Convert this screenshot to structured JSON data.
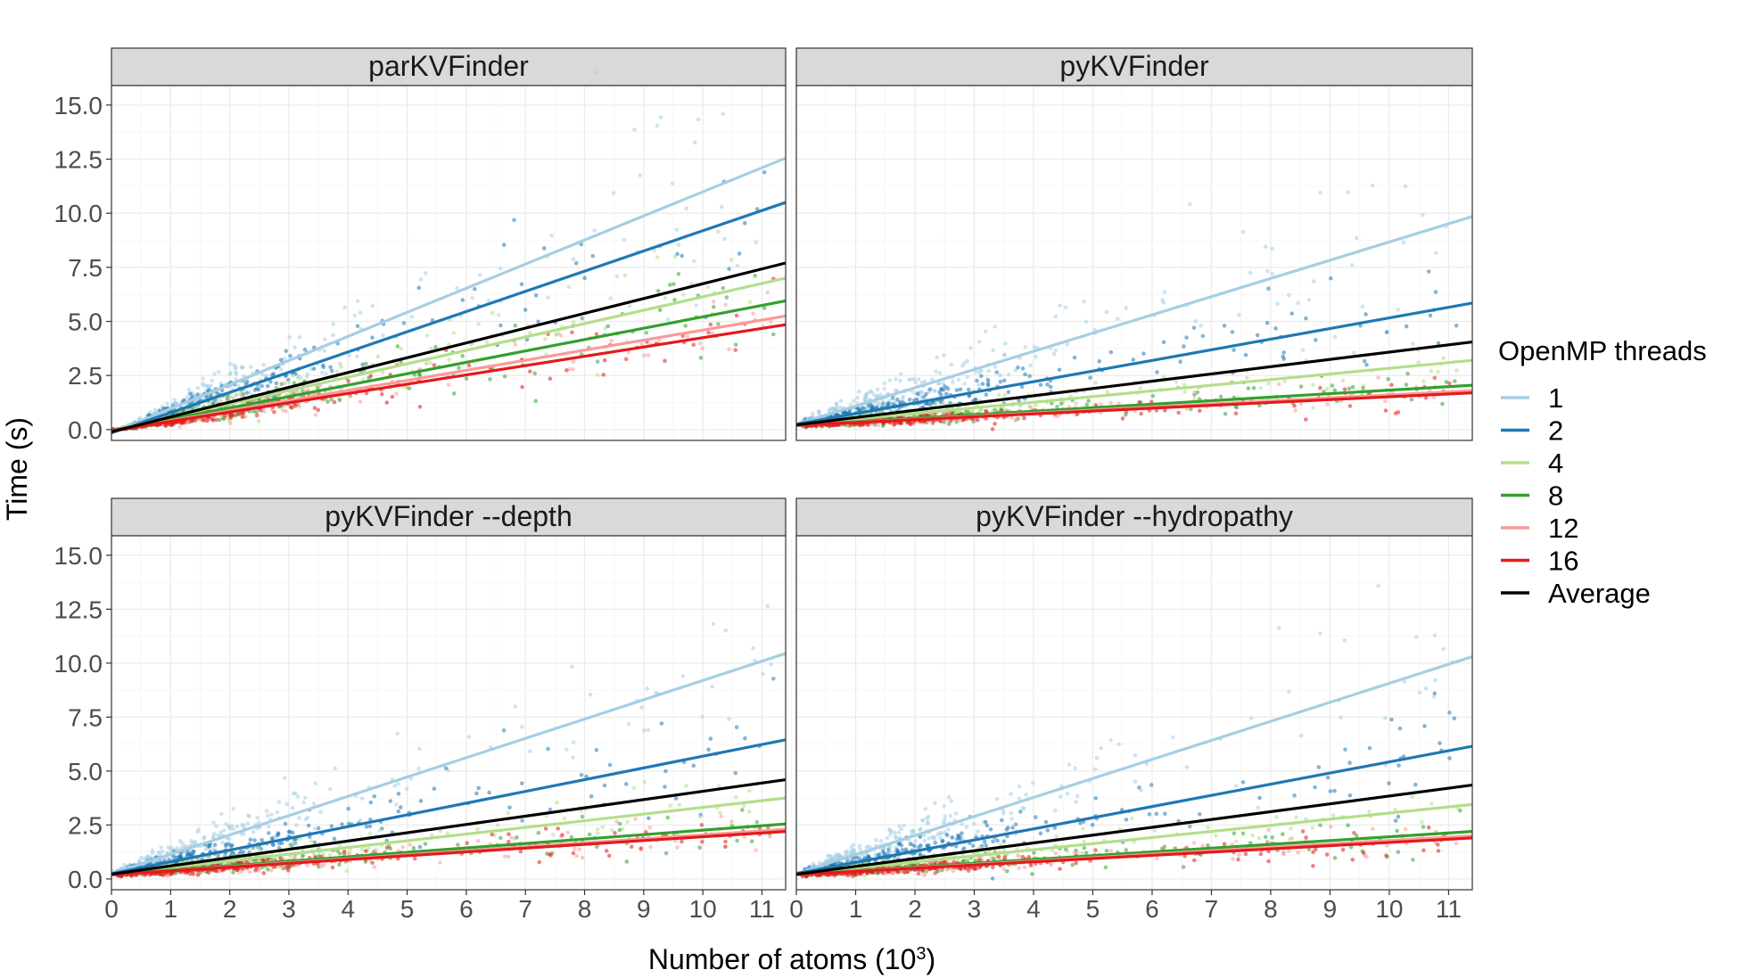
{
  "chart_data": {
    "type": "scatter",
    "facets": [
      {
        "title": "parKVFinder",
        "row": 0,
        "col": 0,
        "fits": [
          {
            "series": "1",
            "y0": -0.15,
            "y_end": 12.55
          },
          {
            "series": "2",
            "y0": -0.15,
            "y_end": 10.5
          },
          {
            "series": "4",
            "y0": -0.05,
            "y_end": 7.0
          },
          {
            "series": "8",
            "y0": -0.05,
            "y_end": 5.95
          },
          {
            "series": "12",
            "y0": -0.05,
            "y_end": 5.25
          },
          {
            "series": "16",
            "y0": -0.05,
            "y_end": 4.85
          },
          {
            "series": "Average",
            "y0": -0.1,
            "y_end": 7.7
          }
        ]
      },
      {
        "title": "pyKVFinder",
        "row": 0,
        "col": 1,
        "fits": [
          {
            "series": "1",
            "y0": 0.25,
            "y_end": 9.85
          },
          {
            "series": "2",
            "y0": 0.25,
            "y_end": 5.85
          },
          {
            "series": "4",
            "y0": 0.22,
            "y_end": 3.2
          },
          {
            "series": "8",
            "y0": 0.2,
            "y_end": 2.05
          },
          {
            "series": "12",
            "y0": 0.2,
            "y_end": 1.8
          },
          {
            "series": "16",
            "y0": 0.2,
            "y_end": 1.7
          },
          {
            "series": "Average",
            "y0": 0.22,
            "y_end": 4.05
          }
        ]
      },
      {
        "title": "pyKVFinder --depth",
        "row": 1,
        "col": 0,
        "fits": [
          {
            "series": "1",
            "y0": 0.25,
            "y_end": 10.45
          },
          {
            "series": "2",
            "y0": 0.25,
            "y_end": 6.45
          },
          {
            "series": "4",
            "y0": 0.22,
            "y_end": 3.75
          },
          {
            "series": "8",
            "y0": 0.2,
            "y_end": 2.55
          },
          {
            "series": "12",
            "y0": 0.2,
            "y_end": 2.3
          },
          {
            "series": "16",
            "y0": 0.2,
            "y_end": 2.2
          },
          {
            "series": "Average",
            "y0": 0.22,
            "y_end": 4.6
          }
        ]
      },
      {
        "title": "pyKVFinder --hydropathy",
        "row": 1,
        "col": 1,
        "fits": [
          {
            "series": "1",
            "y0": 0.25,
            "y_end": 10.3
          },
          {
            "series": "2",
            "y0": 0.25,
            "y_end": 6.15
          },
          {
            "series": "4",
            "y0": 0.22,
            "y_end": 3.45
          },
          {
            "series": "8",
            "y0": 0.2,
            "y_end": 2.2
          },
          {
            "series": "12",
            "y0": 0.2,
            "y_end": 2.0
          },
          {
            "series": "16",
            "y0": 0.2,
            "y_end": 1.9
          },
          {
            "series": "Average",
            "y0": 0.22,
            "y_end": 4.35
          }
        ]
      }
    ],
    "x_end": 11.4,
    "xlabel": "Number of atoms (10",
    "xlabel_sup": "3",
    "xlabel_close": ")",
    "ylabel": "Time (s)",
    "xlim": [
      0,
      11.4
    ],
    "ylim": [
      0,
      15
    ],
    "x_ticks": [
      "0",
      "1",
      "2",
      "3",
      "4",
      "5",
      "6",
      "7",
      "8",
      "9",
      "10",
      "11"
    ],
    "y_ticks": [
      "0.0",
      "2.5",
      "5.0",
      "7.5",
      "10.0",
      "12.5",
      "15.0"
    ],
    "grid": true,
    "legend": {
      "title": "OpenMP threads",
      "position": "right",
      "entries": [
        {
          "label": "1",
          "color": "#a6cee3"
        },
        {
          "label": "2",
          "color": "#1f78b4"
        },
        {
          "label": "4",
          "color": "#b2df8a"
        },
        {
          "label": "8",
          "color": "#33a02c"
        },
        {
          "label": "12",
          "color": "#fb9a99"
        },
        {
          "label": "16",
          "color": "#e31a1c"
        },
        {
          "label": "Average",
          "color": "#000000"
        }
      ]
    },
    "points_note": ""
  }
}
